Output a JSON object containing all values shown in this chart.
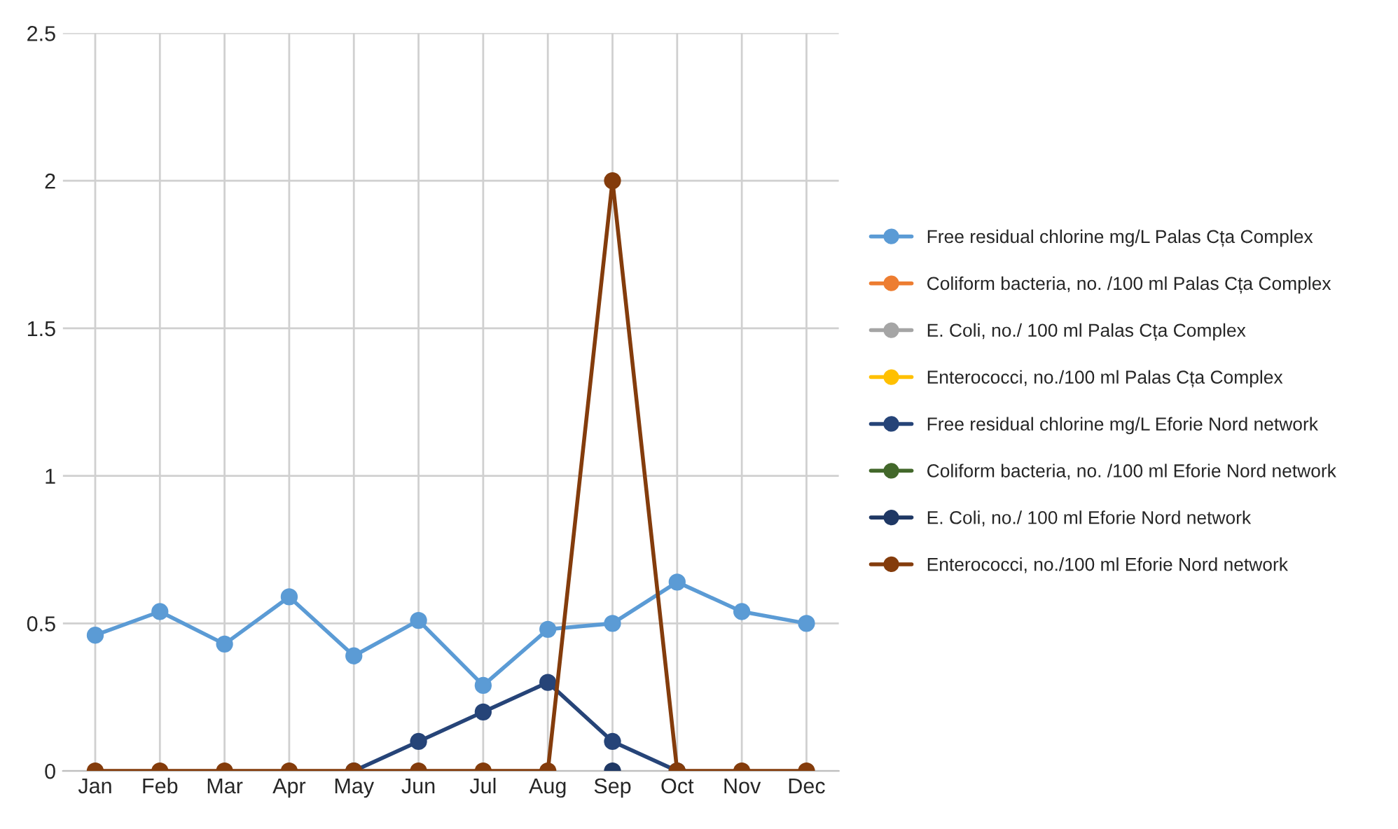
{
  "chart_data": {
    "type": "line",
    "categories": [
      "Jan",
      "Feb",
      "Mar",
      "Apr",
      "May",
      "Jun",
      "Jul",
      "Aug",
      "Sep",
      "Oct",
      "Nov",
      "Dec"
    ],
    "series": [
      {
        "name": "Free residual chlorine mg/L Palas Cța Complex",
        "color": "#5b9bd5",
        "values": [
          0.46,
          0.54,
          0.43,
          0.59,
          0.39,
          0.51,
          0.29,
          0.48,
          0.5,
          0.64,
          0.54,
          0.5
        ]
      },
      {
        "name": "Coliform bacteria, no. /100 ml Palas Cța Complex",
        "color": "#ed7d31",
        "values": [
          null,
          null,
          null,
          null,
          null,
          null,
          null,
          null,
          null,
          null,
          null,
          null
        ]
      },
      {
        "name": "E. Coli, no./ 100 ml Palas Cța Complex",
        "color": "#a5a5a5",
        "values": [
          null,
          null,
          null,
          null,
          null,
          null,
          null,
          null,
          null,
          null,
          null,
          null
        ]
      },
      {
        "name": "Enterococci, no./100 ml Palas Cța Complex",
        "color": "#ffc000",
        "values": [
          null,
          null,
          null,
          null,
          null,
          null,
          null,
          null,
          null,
          null,
          null,
          null
        ]
      },
      {
        "name": "Free residual chlorine mg/L Eforie Nord network",
        "color": "#264478",
        "values": [
          null,
          null,
          null,
          null,
          0,
          0.1,
          0.2,
          0.3,
          0.1,
          0,
          null,
          null
        ]
      },
      {
        "name": "Coliform bacteria, no. /100 ml Eforie Nord network",
        "color": "#43682b",
        "values": [
          null,
          null,
          null,
          null,
          null,
          null,
          null,
          null,
          null,
          null,
          null,
          null
        ]
      },
      {
        "name": "E. Coli, no./ 100 ml Eforie Nord network",
        "color": "#1f3864",
        "values": [
          null,
          null,
          null,
          null,
          null,
          null,
          null,
          null,
          0,
          null,
          null,
          null
        ]
      },
      {
        "name": "Enterococci, no./100 ml Eforie Nord network",
        "color": "#843c0c",
        "values": [
          0,
          0,
          0,
          0,
          0,
          0,
          0,
          0,
          2,
          0,
          0,
          0
        ]
      }
    ],
    "ylim": [
      0,
      2.5
    ],
    "yticks": [
      0,
      0.5,
      1,
      1.5,
      2,
      2.5
    ],
    "grid": true,
    "legend": "right",
    "marker": "circle",
    "line_style": "solid"
  }
}
